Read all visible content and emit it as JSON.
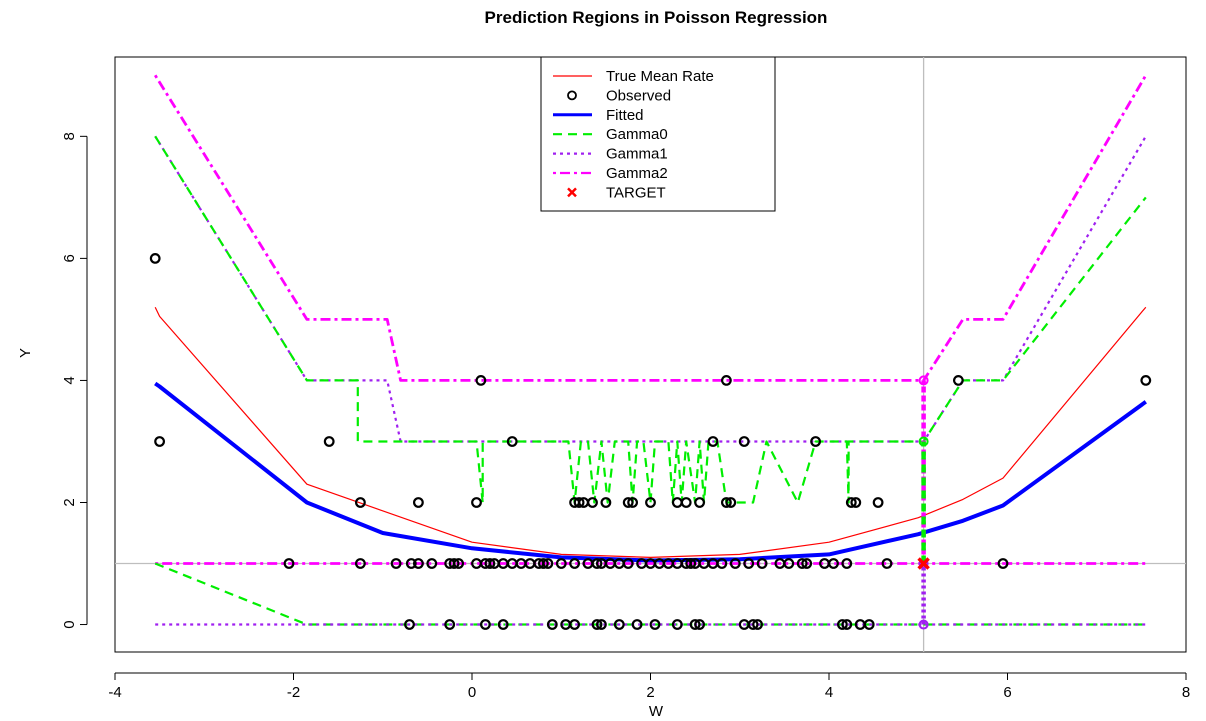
{
  "chart_data": {
    "type": "line",
    "title": "Prediction Regions in Poisson Regression",
    "xlabel": "W",
    "ylabel": "Y",
    "xlim": [
      -4,
      8
    ],
    "ylim": [
      -0.45,
      9.3
    ],
    "xticks": [
      -4,
      -2,
      0,
      2,
      4,
      6,
      8
    ],
    "yticks": [
      0,
      2,
      4,
      6,
      8
    ],
    "grid": false,
    "reference_lines": {
      "vertical_x": 5.06,
      "horizontal_y": 1
    },
    "legend": {
      "position": "top-center",
      "entries": [
        {
          "label": "True Mean Rate",
          "color": "#ff0000",
          "style": "solid-thin"
        },
        {
          "label": "Observed",
          "color": "#000000",
          "style": "circle"
        },
        {
          "label": "Fitted",
          "color": "#0000ff",
          "style": "solid-thick"
        },
        {
          "label": "Gamma0",
          "color": "#00ee00",
          "style": "dashed"
        },
        {
          "label": "Gamma1",
          "color": "#a020f0",
          "style": "dotted"
        },
        {
          "label": "Gamma2",
          "color": "#ff00ff",
          "style": "dotdash"
        },
        {
          "label": "TARGET",
          "color": "#ff0000",
          "style": "cross"
        }
      ]
    },
    "series": [
      {
        "name": "True Mean Rate",
        "color": "#ff0000",
        "x": [
          -3.55,
          -3.5,
          -1.85,
          0,
          1,
          2,
          3,
          4,
          5,
          5.5,
          5.95,
          7.55
        ],
        "y": [
          5.2,
          5.05,
          2.3,
          1.35,
          1.15,
          1.1,
          1.15,
          1.35,
          1.75,
          2.05,
          2.4,
          5.2
        ]
      },
      {
        "name": "Fitted",
        "color": "#0000ff",
        "x": [
          -3.55,
          -3.5,
          -1.85,
          -1,
          0,
          1,
          2,
          3,
          4,
          5,
          5.5,
          5.95,
          7.55
        ],
        "y": [
          3.95,
          3.9,
          2.0,
          1.5,
          1.25,
          1.1,
          1.05,
          1.07,
          1.15,
          1.48,
          1.7,
          1.95,
          3.65
        ]
      },
      {
        "name": "Gamma2 upper",
        "color": "#ff00ff",
        "x": [
          -3.55,
          -1.85,
          -0.95,
          -0.8,
          5.06,
          5.5,
          5.95,
          7.55
        ],
        "y": [
          9,
          5,
          5,
          4,
          4,
          5,
          5,
          9
        ]
      },
      {
        "name": "Gamma1 upper",
        "color": "#a020f0",
        "x": [
          -3.55,
          -1.85,
          -0.95,
          -0.8,
          5.06,
          5.5,
          5.95,
          7.55
        ],
        "y": [
          8,
          4,
          4,
          3,
          3,
          4,
          4,
          8
        ]
      },
      {
        "name": "Gamma0 upper",
        "color": "#00ee00",
        "x": [
          -3.55,
          -1.85,
          -1.28,
          -1.28,
          0.05,
          0.12,
          0.12,
          1.08,
          1.15,
          1.22,
          1.3,
          1.37,
          1.45,
          1.52,
          1.6,
          1.75,
          1.8,
          1.85,
          1.92,
          2,
          2.05,
          2.2,
          2.25,
          2.3,
          2.35,
          2.4,
          2.5,
          2.55,
          2.6,
          2.65,
          2.75,
          2.85,
          3.15,
          3.3,
          3.65,
          3.85,
          4.2,
          4.22,
          4.22,
          5.06,
          5.5,
          5.95,
          7.55
        ],
        "y": [
          8,
          4,
          4,
          3,
          3,
          2,
          3,
          3,
          2,
          3,
          3,
          2,
          3,
          2,
          3,
          3,
          2,
          3,
          3,
          2,
          3,
          3,
          2,
          3,
          2,
          3,
          2,
          3,
          2,
          3,
          3,
          2,
          2,
          3,
          2,
          3,
          3,
          2,
          3,
          3,
          4,
          4,
          7
        ]
      },
      {
        "name": "Gamma2 lower",
        "color": "#ff00ff",
        "x": [
          -3.55,
          7.55
        ],
        "y": [
          1,
          1
        ]
      },
      {
        "name": "Gamma0 lower",
        "color": "#00ee00",
        "x": [
          -3.55,
          -1.85,
          7.55
        ],
        "y": [
          1,
          0,
          0
        ]
      },
      {
        "name": "Gamma1 lower",
        "color": "#a020f0",
        "x": [
          -3.55,
          7.55
        ],
        "y": [
          0,
          0
        ]
      }
    ],
    "target_interval": {
      "x": 5.06,
      "segments": [
        {
          "color": "#ff00ff",
          "y": [
            1,
            4
          ]
        },
        {
          "color": "#a020f0",
          "y": [
            0,
            1
          ]
        },
        {
          "color": "#00ee00",
          "y": [
            1,
            3
          ]
        }
      ]
    },
    "observed": {
      "color": "#000000",
      "x": [
        -3.55,
        -3.5,
        -1.6,
        -1.25,
        -0.6,
        0.05,
        0.45,
        1.15,
        1.2,
        1.25,
        1.35,
        1.5,
        1.75,
        1.8,
        2.0,
        2.3,
        2.4,
        2.55,
        2.7,
        2.85,
        2.9,
        3.05,
        3.85,
        4.25,
        4.3,
        4.55,
        0.1,
        2.85,
        5.45,
        7.55,
        -2.05,
        -1.25,
        -0.85,
        -0.68,
        -0.6,
        -0.45,
        -0.25,
        -0.2,
        -0.15,
        0.05,
        0.15,
        0.2,
        0.25,
        0.35,
        0.45,
        0.55,
        0.65,
        0.75,
        0.8,
        0.85,
        1.0,
        1.15,
        1.3,
        1.4,
        1.45,
        1.55,
        1.65,
        1.75,
        1.9,
        2.0,
        2.1,
        2.2,
        2.3,
        2.4,
        2.45,
        2.5,
        2.6,
        2.7,
        2.8,
        2.95,
        3.1,
        3.25,
        3.45,
        3.55,
        3.7,
        3.75,
        3.95,
        4.05,
        4.2,
        4.65,
        5.95,
        -0.7,
        -0.25,
        0.15,
        0.35,
        0.9,
        1.05,
        1.15,
        1.4,
        1.45,
        1.65,
        1.85,
        2.05,
        2.3,
        2.5,
        2.55,
        3.05,
        3.15,
        3.2,
        4.15,
        4.2,
        4.35,
        4.45
      ],
      "y": [
        6,
        3,
        3,
        2,
        2,
        2,
        3,
        2,
        2,
        2,
        2,
        2,
        2,
        2,
        2,
        2,
        2,
        2,
        3,
        2,
        2,
        3,
        3,
        2,
        2,
        2,
        4,
        4,
        4,
        4,
        1,
        1,
        1,
        1,
        1,
        1,
        1,
        1,
        1,
        1,
        1,
        1,
        1,
        1,
        1,
        1,
        1,
        1,
        1,
        1,
        1,
        1,
        1,
        1,
        1,
        1,
        1,
        1,
        1,
        1,
        1,
        1,
        1,
        1,
        1,
        1,
        1,
        1,
        1,
        1,
        1,
        1,
        1,
        1,
        1,
        1,
        1,
        1,
        1,
        1,
        1,
        0,
        0,
        0,
        0,
        0,
        0,
        0,
        0,
        0,
        0,
        0,
        0,
        0,
        0,
        0,
        0,
        0,
        0,
        0,
        0,
        0,
        0
      ]
    },
    "target": {
      "label": "TARGET",
      "color": "#ff0000",
      "x": 5.06,
      "y": 1
    }
  }
}
